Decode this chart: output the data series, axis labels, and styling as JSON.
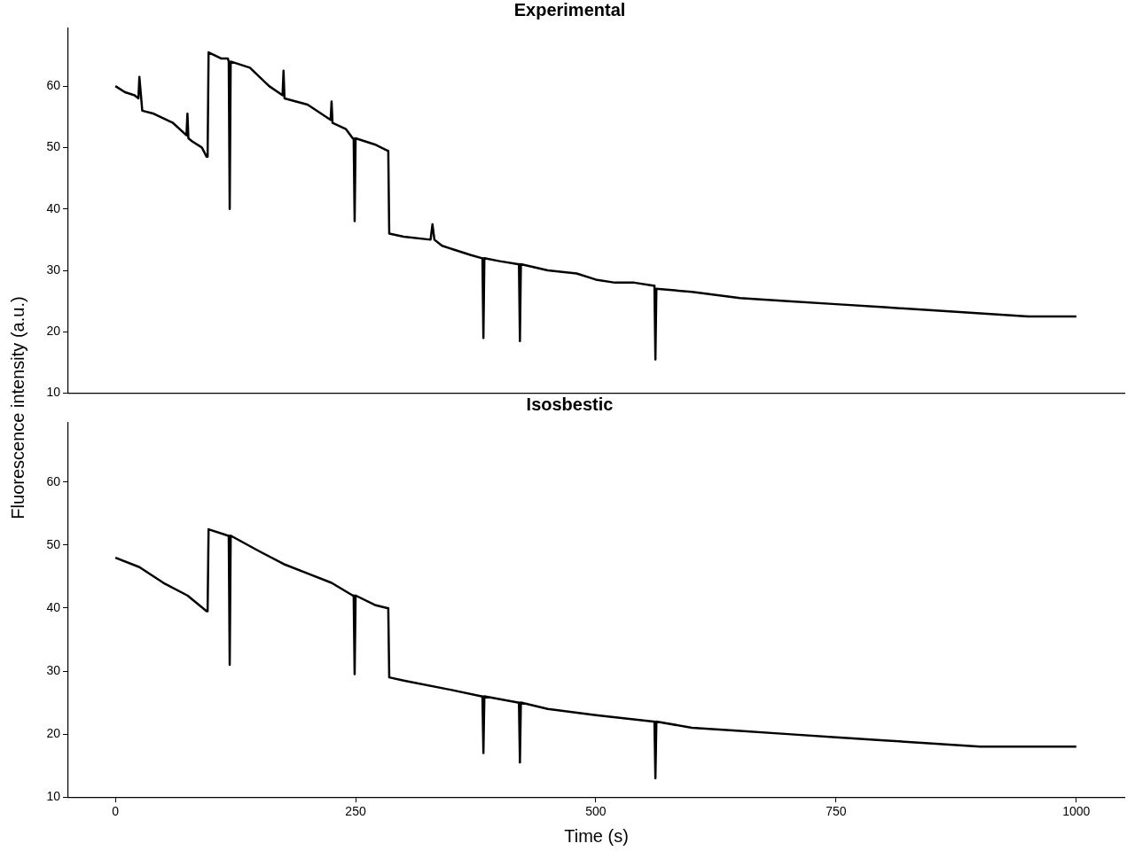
{
  "chart_data": [
    {
      "type": "line",
      "title": "Experimental",
      "ylabel": "Fluorescence intensity (a.u.)",
      "tick_labels": "y",
      "xlim": [
        -49,
        1050
      ],
      "xticks": [
        0,
        250,
        500,
        750,
        1000
      ],
      "ylim": [
        10,
        69.4
      ],
      "yticks": [
        10,
        20,
        30,
        40,
        50,
        60
      ],
      "series": [
        {
          "color": "#000000",
          "x": [
            0,
            10,
            20,
            24,
            25,
            28,
            40,
            60,
            74,
            75,
            76,
            80,
            90,
            95,
            96,
            97,
            110,
            117,
            118,
            119,
            120,
            140,
            160,
            174,
            175,
            176,
            200,
            224,
            225,
            226,
            240,
            247,
            248,
            249,
            250,
            270,
            283,
            284,
            285,
            300,
            328,
            330,
            332,
            340,
            370,
            381,
            382,
            383,
            384,
            400,
            419,
            420,
            421,
            422,
            450,
            480,
            500,
            520,
            540,
            560,
            561,
            562,
            563,
            600,
            650,
            700,
            750,
            800,
            850,
            900,
            950,
            1000
          ],
          "values": [
            60,
            59,
            58.5,
            58,
            61.5,
            56,
            55.5,
            54,
            52,
            55.5,
            51.5,
            51,
            50,
            48.5,
            48.5,
            65.5,
            64.5,
            64.5,
            64,
            40,
            64,
            63,
            60,
            58.5,
            62.5,
            58,
            57,
            54.5,
            57.5,
            54,
            53,
            51.5,
            51.5,
            38,
            51.5,
            50.5,
            49.5,
            49.5,
            36,
            35.5,
            35,
            37.5,
            35,
            34,
            32.5,
            32,
            32,
            19,
            32,
            31.5,
            31,
            31,
            18.5,
            31,
            30,
            29.5,
            28.5,
            28,
            28,
            27.5,
            27.5,
            15.5,
            27,
            26.5,
            25.5,
            25,
            24.5,
            24,
            23.5,
            23,
            22.5,
            22.5
          ]
        }
      ]
    },
    {
      "type": "line",
      "title": "Isosbestic",
      "xlabel": "Time (s)",
      "xlim": [
        -49,
        1050
      ],
      "xticks": [
        0,
        250,
        500,
        750,
        1000
      ],
      "ylim": [
        10,
        69.4
      ],
      "yticks": [
        10,
        20,
        30,
        40,
        50,
        60
      ],
      "series": [
        {
          "color": "#000000",
          "x": [
            0,
            25,
            50,
            75,
            95,
            96,
            97,
            117,
            118,
            119,
            120,
            150,
            175,
            200,
            225,
            247,
            248,
            249,
            250,
            270,
            283,
            284,
            285,
            300,
            350,
            381,
            382,
            383,
            384,
            419,
            420,
            421,
            422,
            450,
            500,
            560,
            561,
            562,
            563,
            600,
            650,
            700,
            750,
            800,
            850,
            900,
            950,
            1000
          ],
          "values": [
            48,
            46.5,
            44,
            42,
            39.5,
            39.5,
            52.5,
            51.5,
            51.5,
            31,
            51.5,
            49,
            47,
            45.5,
            44,
            42,
            42,
            29.5,
            42,
            40.5,
            40,
            40,
            29,
            28.5,
            27,
            26,
            26,
            17,
            26,
            25,
            25,
            15.5,
            25,
            24,
            23,
            22,
            22,
            13,
            22,
            21,
            20.5,
            20,
            19.5,
            19,
            18.5,
            18,
            18,
            18
          ]
        }
      ]
    }
  ]
}
